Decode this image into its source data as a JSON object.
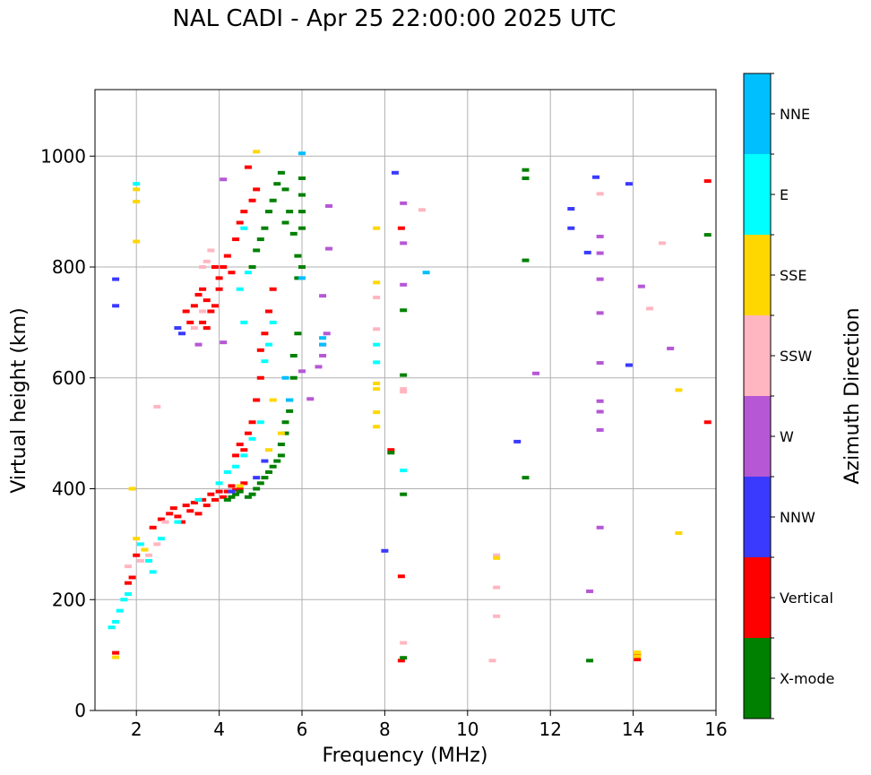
{
  "chart_data": {
    "type": "scatter",
    "title": "NAL CADI - Apr 25 22:00:00 2025 UTC",
    "xlabel": "Frequency (MHz)",
    "ylabel": "Virtual height (km)",
    "xlim": [
      1,
      16
    ],
    "ylim": [
      0,
      1120
    ],
    "xticks": [
      2,
      4,
      6,
      8,
      10,
      12,
      14,
      16
    ],
    "yticks": [
      0,
      200,
      400,
      600,
      800,
      1000
    ],
    "grid": true,
    "colorbar": {
      "label": "Azimuth Direction",
      "categories": [
        {
          "name": "X-mode",
          "color": "#008000"
        },
        {
          "name": "Vertical",
          "color": "#ff0000"
        },
        {
          "name": "NNW",
          "color": "#3a3aff"
        },
        {
          "name": "W",
          "color": "#b657d6"
        },
        {
          "name": "SSW",
          "color": "#ffb6c1"
        },
        {
          "name": "SSE",
          "color": "#ffd700"
        },
        {
          "name": "E",
          "color": "#00ffff"
        },
        {
          "name": "NNE",
          "color": "#00bfff"
        }
      ]
    },
    "series": [
      {
        "name": "Vertical",
        "points": [
          [
            1.5,
            104
          ],
          [
            1.8,
            230
          ],
          [
            1.9,
            240
          ],
          [
            2.0,
            280
          ],
          [
            2.4,
            330
          ],
          [
            2.6,
            345
          ],
          [
            2.8,
            355
          ],
          [
            2.9,
            365
          ],
          [
            3.0,
            350
          ],
          [
            3.1,
            340
          ],
          [
            3.2,
            370
          ],
          [
            3.3,
            360
          ],
          [
            3.4,
            375
          ],
          [
            3.5,
            355
          ],
          [
            3.6,
            380
          ],
          [
            3.7,
            370
          ],
          [
            3.8,
            390
          ],
          [
            3.9,
            380
          ],
          [
            4.0,
            395
          ],
          [
            4.1,
            385
          ],
          [
            4.2,
            395
          ],
          [
            4.3,
            405
          ],
          [
            4.4,
            398
          ],
          [
            4.5,
            400
          ],
          [
            4.6,
            410
          ],
          [
            4.4,
            460
          ],
          [
            4.5,
            480
          ],
          [
            4.6,
            470
          ],
          [
            4.7,
            500
          ],
          [
            4.8,
            520
          ],
          [
            4.9,
            560
          ],
          [
            5.0,
            600
          ],
          [
            5.0,
            650
          ],
          [
            5.1,
            680
          ],
          [
            5.2,
            720
          ],
          [
            5.3,
            760
          ],
          [
            3.2,
            720
          ],
          [
            3.3,
            700
          ],
          [
            3.4,
            730
          ],
          [
            3.5,
            750
          ],
          [
            3.6,
            760
          ],
          [
            3.7,
            740
          ],
          [
            3.8,
            720
          ],
          [
            3.9,
            730
          ],
          [
            4.0,
            780
          ],
          [
            4.1,
            800
          ],
          [
            4.2,
            820
          ],
          [
            4.3,
            790
          ],
          [
            4.4,
            850
          ],
          [
            4.5,
            880
          ],
          [
            4.6,
            900
          ],
          [
            4.7,
            980
          ],
          [
            4.8,
            920
          ],
          [
            4.9,
            940
          ],
          [
            3.9,
            800
          ],
          [
            4.0,
            760
          ],
          [
            3.6,
            700
          ],
          [
            3.7,
            690
          ],
          [
            8.4,
            90
          ],
          [
            8.4,
            242
          ],
          [
            8.4,
            870
          ],
          [
            8.15,
            470
          ],
          [
            14.1,
            92
          ],
          [
            14.1,
            100
          ],
          [
            15.8,
            520
          ],
          [
            15.8,
            955
          ]
        ]
      },
      {
        "name": "X-mode",
        "points": [
          [
            4.2,
            380
          ],
          [
            4.3,
            385
          ],
          [
            4.4,
            390
          ],
          [
            4.5,
            395
          ],
          [
            4.7,
            385
          ],
          [
            4.8,
            390
          ],
          [
            4.9,
            400
          ],
          [
            5.0,
            410
          ],
          [
            5.1,
            420
          ],
          [
            5.2,
            430
          ],
          [
            5.3,
            440
          ],
          [
            5.4,
            450
          ],
          [
            5.5,
            460
          ],
          [
            5.5,
            480
          ],
          [
            5.6,
            500
          ],
          [
            5.6,
            520
          ],
          [
            5.7,
            540
          ],
          [
            5.7,
            560
          ],
          [
            5.8,
            600
          ],
          [
            5.8,
            640
          ],
          [
            5.9,
            680
          ],
          [
            4.8,
            800
          ],
          [
            4.9,
            830
          ],
          [
            5.0,
            850
          ],
          [
            5.1,
            870
          ],
          [
            5.2,
            900
          ],
          [
            5.3,
            920
          ],
          [
            5.4,
            950
          ],
          [
            5.5,
            970
          ],
          [
            5.6,
            940
          ],
          [
            5.7,
            900
          ],
          [
            5.8,
            860
          ],
          [
            5.6,
            880
          ],
          [
            6.0,
            960
          ],
          [
            6.0,
            930
          ],
          [
            6.0,
            900
          ],
          [
            6.0,
            870
          ],
          [
            5.9,
            820
          ],
          [
            5.9,
            780
          ],
          [
            6.0,
            800
          ],
          [
            8.45,
            95
          ],
          [
            8.45,
            390
          ],
          [
            8.45,
            605
          ],
          [
            8.45,
            722
          ],
          [
            8.15,
            465
          ],
          [
            11.4,
            420
          ],
          [
            11.4,
            960
          ],
          [
            11.4,
            812
          ],
          [
            11.4,
            975
          ],
          [
            12.95,
            90
          ],
          [
            15.8,
            858
          ]
        ]
      },
      {
        "name": "NNW",
        "points": [
          [
            1.5,
            778
          ],
          [
            1.5,
            730
          ],
          [
            3.0,
            690
          ],
          [
            3.1,
            680
          ],
          [
            4.3,
            395
          ],
          [
            4.9,
            420
          ],
          [
            5.1,
            450
          ],
          [
            8.25,
            970
          ],
          [
            8.0,
            288
          ],
          [
            11.2,
            485
          ],
          [
            13.1,
            962
          ],
          [
            12.5,
            905
          ],
          [
            12.5,
            870
          ],
          [
            12.9,
            826
          ],
          [
            13.9,
            950
          ],
          [
            13.9,
            623
          ]
        ]
      },
      {
        "name": "W",
        "points": [
          [
            3.5,
            660
          ],
          [
            4.1,
            958
          ],
          [
            4.1,
            664
          ],
          [
            6.0,
            612
          ],
          [
            6.2,
            562
          ],
          [
            6.5,
            748
          ],
          [
            6.65,
            910
          ],
          [
            6.65,
            833
          ],
          [
            6.6,
            680
          ],
          [
            6.5,
            640
          ],
          [
            6.4,
            620
          ],
          [
            6.5,
            660
          ],
          [
            8.45,
            915
          ],
          [
            8.45,
            843
          ],
          [
            8.45,
            768
          ],
          [
            11.65,
            608
          ],
          [
            13.2,
            855
          ],
          [
            13.2,
            825
          ],
          [
            13.2,
            778
          ],
          [
            13.2,
            717
          ],
          [
            13.2,
            627
          ],
          [
            13.2,
            558
          ],
          [
            13.2,
            539
          ],
          [
            13.2,
            506
          ],
          [
            13.2,
            330
          ],
          [
            12.95,
            215
          ],
          [
            14.2,
            765
          ],
          [
            14.9,
            653
          ]
        ]
      },
      {
        "name": "SSW",
        "points": [
          [
            1.8,
            260
          ],
          [
            2.1,
            270
          ],
          [
            2.3,
            280
          ],
          [
            2.5,
            300
          ],
          [
            2.5,
            548
          ],
          [
            2.7,
            340
          ],
          [
            3.6,
            800
          ],
          [
            3.7,
            810
          ],
          [
            3.8,
            830
          ],
          [
            3.6,
            720
          ],
          [
            3.4,
            690
          ],
          [
            7.8,
            745
          ],
          [
            7.8,
            688
          ],
          [
            8.45,
            580
          ],
          [
            8.45,
            575
          ],
          [
            8.45,
            122
          ],
          [
            8.9,
            903
          ],
          [
            10.6,
            90
          ],
          [
            10.7,
            170
          ],
          [
            10.7,
            222
          ],
          [
            10.7,
            280
          ],
          [
            13.2,
            932
          ],
          [
            14.7,
            843
          ],
          [
            14.4,
            725
          ]
        ]
      },
      {
        "name": "SSE",
        "points": [
          [
            1.5,
            96
          ],
          [
            2.0,
            940
          ],
          [
            2.0,
            918
          ],
          [
            2.0,
            846
          ],
          [
            1.9,
            400
          ],
          [
            2.0,
            310
          ],
          [
            2.2,
            290
          ],
          [
            4.5,
            405
          ],
          [
            4.9,
            1008
          ],
          [
            5.2,
            470
          ],
          [
            5.3,
            560
          ],
          [
            5.5,
            500
          ],
          [
            7.8,
            870
          ],
          [
            7.8,
            772
          ],
          [
            7.8,
            590
          ],
          [
            7.8,
            580
          ],
          [
            7.8,
            538
          ],
          [
            7.8,
            512
          ],
          [
            10.7,
            275
          ],
          [
            14.1,
            98
          ],
          [
            14.1,
            105
          ],
          [
            15.1,
            578
          ],
          [
            15.1,
            320
          ]
        ]
      },
      {
        "name": "E",
        "points": [
          [
            1.4,
            150
          ],
          [
            1.5,
            160
          ],
          [
            1.6,
            180
          ],
          [
            1.7,
            200
          ],
          [
            1.8,
            210
          ],
          [
            2.0,
            950
          ],
          [
            2.1,
            300
          ],
          [
            2.3,
            270
          ],
          [
            2.4,
            250
          ],
          [
            2.6,
            310
          ],
          [
            3.0,
            340
          ],
          [
            3.5,
            380
          ],
          [
            4.0,
            410
          ],
          [
            4.2,
            430
          ],
          [
            4.4,
            440
          ],
          [
            4.6,
            460
          ],
          [
            4.8,
            490
          ],
          [
            5.0,
            520
          ],
          [
            5.1,
            630
          ],
          [
            5.2,
            660
          ],
          [
            5.3,
            700
          ],
          [
            4.6,
            700
          ],
          [
            4.5,
            760
          ],
          [
            4.7,
            790
          ],
          [
            4.6,
            870
          ],
          [
            7.8,
            660
          ],
          [
            7.8,
            628
          ],
          [
            8.45,
            433
          ]
        ]
      },
      {
        "name": "NNE",
        "points": [
          [
            5.6,
            600
          ],
          [
            5.7,
            560
          ],
          [
            6.0,
            1005
          ],
          [
            6.0,
            780
          ],
          [
            6.5,
            660
          ],
          [
            6.5,
            672
          ],
          [
            9.0,
            790
          ]
        ]
      }
    ]
  }
}
